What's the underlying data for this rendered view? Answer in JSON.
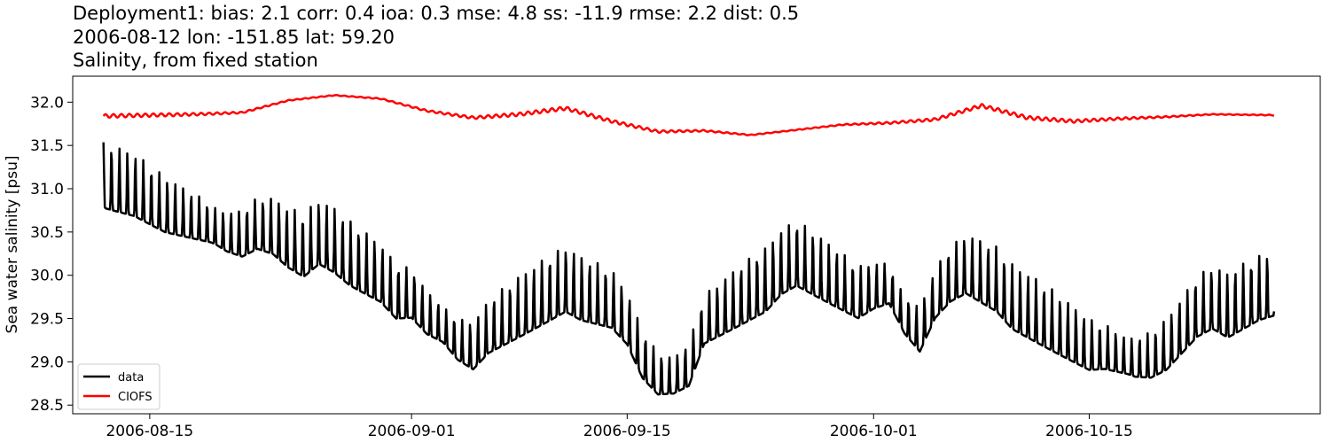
{
  "chart_data": {
    "type": "line",
    "title_lines": [
      "Deployment1: bias: 2.1  corr: 0.4  ioa: 0.3  mse: 4.8  ss: -11.9  rmse: 2.2  dist: 0.5",
      "2006-08-12 lon: -151.85 lat: 59.20",
      "Salinity, from fixed station"
    ],
    "xlabel": "",
    "ylabel": "Sea water salinity [psu]",
    "xlim": [
      "2006-08-10",
      "2006-10-30"
    ],
    "ylim": [
      28.4,
      32.3
    ],
    "x_ticks": [
      "2006-08-15",
      "2006-09-01",
      "2006-09-15",
      "2006-10-01",
      "2006-10-15"
    ],
    "y_ticks": [
      28.5,
      29.0,
      29.5,
      30.0,
      30.5,
      31.0,
      31.5,
      32.0
    ],
    "y_tick_labels": [
      "28.5",
      "29.0",
      "29.5",
      "30.0",
      "30.5",
      "31.0",
      "31.5",
      "32.0"
    ],
    "grid": false,
    "legend": "lower-left",
    "series": [
      {
        "name": "data",
        "color": "#000000",
        "x": [
          "2006-08-12",
          "2006-08-13",
          "2006-08-14",
          "2006-08-15",
          "2006-08-16",
          "2006-08-17",
          "2006-08-18",
          "2006-08-19",
          "2006-08-20",
          "2006-08-21",
          "2006-08-22",
          "2006-08-23",
          "2006-08-24",
          "2006-08-25",
          "2006-08-26",
          "2006-08-27",
          "2006-08-28",
          "2006-08-29",
          "2006-08-30",
          "2006-08-31",
          "2006-09-01",
          "2006-09-02",
          "2006-09-03",
          "2006-09-04",
          "2006-09-05",
          "2006-09-06",
          "2006-09-07",
          "2006-09-08",
          "2006-09-09",
          "2006-09-10",
          "2006-09-11",
          "2006-09-12",
          "2006-09-13",
          "2006-09-14",
          "2006-09-15",
          "2006-09-16",
          "2006-09-17",
          "2006-09-18",
          "2006-09-19",
          "2006-09-20",
          "2006-09-21",
          "2006-09-22",
          "2006-09-23",
          "2006-09-24",
          "2006-09-25",
          "2006-09-26",
          "2006-09-27",
          "2006-09-28",
          "2006-09-29",
          "2006-09-30",
          "2006-10-01",
          "2006-10-02",
          "2006-10-03",
          "2006-10-04",
          "2006-10-05",
          "2006-10-06",
          "2006-10-07",
          "2006-10-08",
          "2006-10-09",
          "2006-10-10",
          "2006-10-11",
          "2006-10-12",
          "2006-10-13",
          "2006-10-14",
          "2006-10-15",
          "2006-10-16",
          "2006-10-17",
          "2006-10-18",
          "2006-10-19",
          "2006-10-20",
          "2006-10-21",
          "2006-10-22",
          "2006-10-23",
          "2006-10-24",
          "2006-10-25",
          "2006-10-26",
          "2006-10-27"
        ],
        "values": [
          30.9,
          30.85,
          30.8,
          30.7,
          30.6,
          30.55,
          30.5,
          30.45,
          30.35,
          30.3,
          30.4,
          30.35,
          30.2,
          30.1,
          30.25,
          30.15,
          30.0,
          29.9,
          29.8,
          29.6,
          29.6,
          29.4,
          29.3,
          29.1,
          29.0,
          29.2,
          29.3,
          29.4,
          29.5,
          29.6,
          29.7,
          29.6,
          29.55,
          29.5,
          29.3,
          28.9,
          28.7,
          28.7,
          28.8,
          29.3,
          29.4,
          29.5,
          29.6,
          29.7,
          29.9,
          30.0,
          29.9,
          29.8,
          29.7,
          29.6,
          29.7,
          29.75,
          29.4,
          29.2,
          29.6,
          29.8,
          29.9,
          29.8,
          29.7,
          29.5,
          29.4,
          29.3,
          29.2,
          29.1,
          29.0,
          29.0,
          28.95,
          28.9,
          28.9,
          29.0,
          29.2,
          29.4,
          29.5,
          29.4,
          29.5,
          29.6,
          29.65
        ]
      },
      {
        "name": "CIOFS",
        "color": "#ff0000",
        "x": [
          "2006-08-12",
          "2006-08-15",
          "2006-08-18",
          "2006-08-21",
          "2006-08-24",
          "2006-08-27",
          "2006-08-30",
          "2006-09-02",
          "2006-09-05",
          "2006-09-08",
          "2006-09-11",
          "2006-09-14",
          "2006-09-17",
          "2006-09-20",
          "2006-09-23",
          "2006-09-26",
          "2006-09-29",
          "2006-10-02",
          "2006-10-05",
          "2006-10-08",
          "2006-10-11",
          "2006-10-14",
          "2006-10-17",
          "2006-10-20",
          "2006-10-23",
          "2006-10-27"
        ],
        "values": [
          31.84,
          31.85,
          31.86,
          31.88,
          32.02,
          32.08,
          32.04,
          31.9,
          31.82,
          31.86,
          31.93,
          31.78,
          31.66,
          31.67,
          31.62,
          31.68,
          31.74,
          31.76,
          31.8,
          31.96,
          31.82,
          31.78,
          31.81,
          31.83,
          31.86,
          31.85
        ]
      }
    ]
  }
}
